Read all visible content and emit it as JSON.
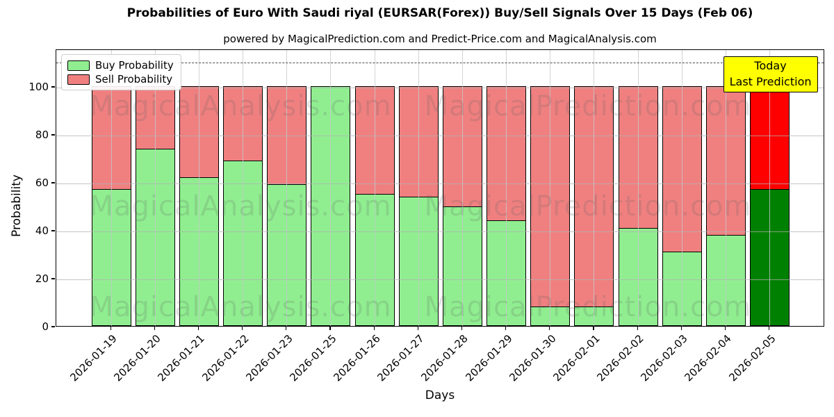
{
  "chart_data": {
    "type": "bar",
    "stacked": true,
    "title": "Probabilities of Euro With Saudi riyal (EURSAR(Forex)) Buy/Sell Signals Over 15 Days (Feb 06)",
    "subtitle": "powered by MagicalPrediction.com and Predict-Price.com and MagicalAnalysis.com",
    "xlabel": "Days",
    "ylabel": "Probability",
    "categories": [
      "2026-01-19",
      "2026-01-20",
      "2026-01-21",
      "2026-01-22",
      "2026-01-23",
      "2026-01-25",
      "2026-01-26",
      "2026-01-27",
      "2026-01-28",
      "2026-01-29",
      "2026-01-30",
      "2026-02-01",
      "2026-02-02",
      "2026-02-03",
      "2026-02-04",
      "2026-02-05"
    ],
    "series": [
      {
        "name": "Buy Probability",
        "color": "#90EE90",
        "values": [
          57,
          74,
          62,
          69,
          59,
          100,
          55,
          54,
          50,
          44,
          8,
          8,
          41,
          31,
          38,
          57
        ]
      },
      {
        "name": "Sell Probability",
        "color": "#F08080",
        "values": [
          43,
          26,
          38,
          31,
          41,
          0,
          45,
          46,
          50,
          56,
          92,
          92,
          59,
          69,
          62,
          43
        ]
      }
    ],
    "bar_edge_color": "#000000",
    "today_index": 15,
    "today_colors": {
      "buy": "#008000",
      "sell": "#FF0000"
    },
    "ylim": [
      0,
      115.7
    ],
    "yticks": [
      0,
      20,
      40,
      60,
      80,
      100
    ],
    "dashed_line_y": 110.5,
    "grid": true,
    "legend_position": "upper left",
    "annotation": {
      "line1": "Today",
      "line2": "Last Prediction",
      "bg_color": "#FFFF00"
    },
    "watermarks": {
      "left": "MagicalAnalysis.com",
      "right": "MagicalPrediction.com"
    }
  }
}
